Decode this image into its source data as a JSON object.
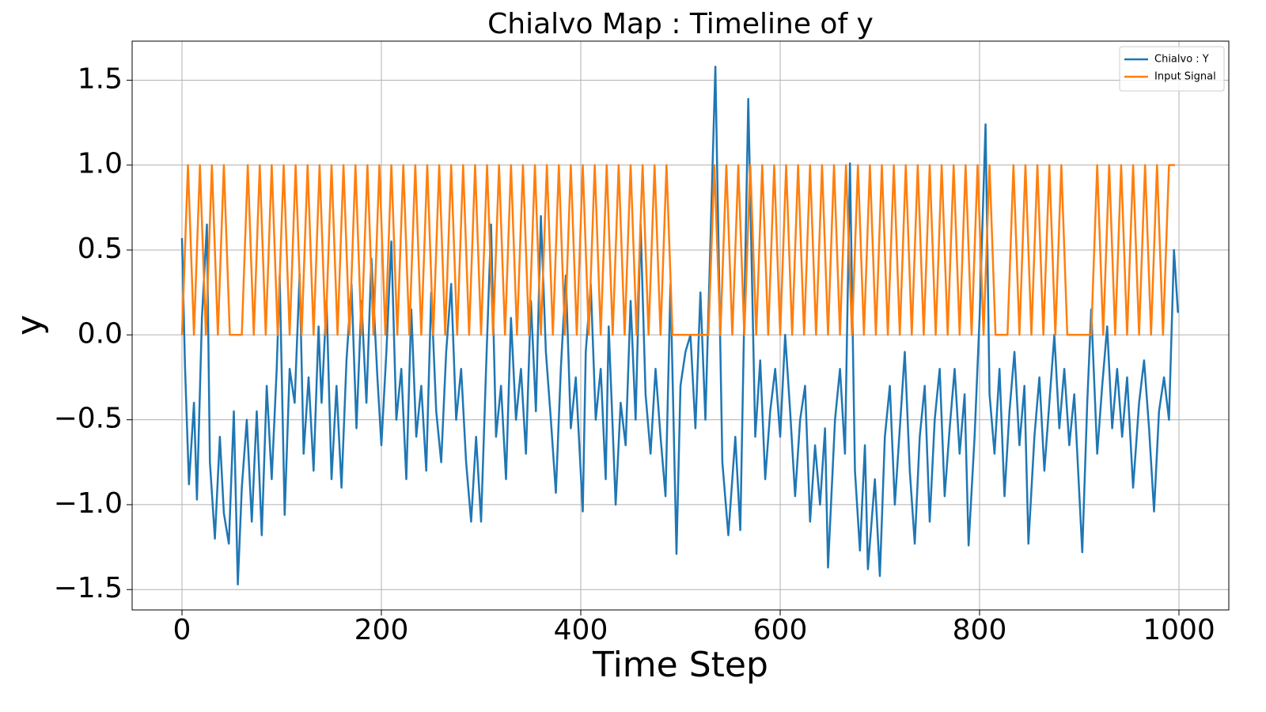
{
  "chart_data": {
    "type": "line",
    "title": "Chialvo Map : Timeline of y",
    "x_label": "Time Step",
    "y_label": "y",
    "xlim": [
      -50,
      1050
    ],
    "ylim": [
      -1.62,
      1.73
    ],
    "xticks": [
      0,
      200,
      400,
      600,
      800,
      1000
    ],
    "yticks": [
      {
        "value": -1.5,
        "label": "−1.5"
      },
      {
        "value": -1.0,
        "label": "−1.0"
      },
      {
        "value": -0.5,
        "label": "−0.5"
      },
      {
        "value": 0,
        "label": "0.0"
      },
      0.5,
      {
        "value": 1.0,
        "label": "1.0"
      },
      1.5
    ],
    "grid": true,
    "legend": "upper right",
    "series": [
      {
        "name": "Chialvo : Y",
        "color": "#1f77b4",
        "x": [
          0,
          3,
          7,
          12,
          15,
          20,
          25,
          28,
          33,
          38,
          42,
          47,
          52,
          56,
          60,
          65,
          70,
          75,
          80,
          85,
          90,
          95,
          98,
          103,
          108,
          113,
          118,
          122,
          127,
          132,
          137,
          140,
          145,
          150,
          155,
          160,
          165,
          170,
          175,
          180,
          185,
          190,
          196,
          200,
          205,
          210,
          215,
          220,
          225,
          230,
          235,
          240,
          245,
          250,
          255,
          260,
          265,
          270,
          275,
          280,
          285,
          290,
          295,
          300,
          305,
          310,
          315,
          320,
          325,
          330,
          335,
          340,
          345,
          350,
          355,
          360,
          365,
          370,
          375,
          380,
          385,
          390,
          395,
          402,
          405,
          410,
          415,
          420,
          425,
          428,
          435,
          440,
          445,
          450,
          455,
          460,
          465,
          470,
          475,
          480,
          485,
          490,
          496,
          500,
          505,
          510,
          515,
          520,
          525,
          535,
          542,
          548,
          555,
          560,
          568,
          575,
          580,
          585,
          590,
          595,
          600,
          605,
          610,
          615,
          620,
          625,
          630,
          635,
          640,
          645,
          648,
          655,
          660,
          665,
          670,
          675,
          680,
          685,
          688,
          695,
          700,
          705,
          710,
          715,
          720,
          725,
          730,
          735,
          740,
          745,
          750,
          755,
          760,
          765,
          770,
          775,
          780,
          785,
          789,
          795,
          800,
          806,
          810,
          815,
          820,
          825,
          830,
          835,
          840,
          845,
          849,
          855,
          860,
          865,
          870,
          875,
          880,
          885,
          890,
          895,
          903,
          908,
          912,
          918,
          923,
          928,
          933,
          938,
          943,
          948,
          954,
          960,
          965,
          970,
          975,
          980,
          985,
          990,
          995,
          999
        ],
        "values": [
          0.57,
          -0.18,
          -0.88,
          -0.4,
          -0.97,
          0.1,
          0.65,
          -0.75,
          -1.2,
          -0.6,
          -1.05,
          -1.23,
          -0.45,
          -1.47,
          -0.9,
          -0.5,
          -1.1,
          -0.45,
          -1.18,
          -0.3,
          -0.85,
          -0.2,
          0.35,
          -1.06,
          -0.2,
          -0.4,
          0.36,
          -0.7,
          -0.25,
          -0.8,
          0.05,
          -0.4,
          0.2,
          -0.85,
          -0.3,
          -0.9,
          -0.15,
          0.3,
          -0.55,
          0.2,
          -0.4,
          0.45,
          -0.25,
          -0.65,
          -0.1,
          0.55,
          -0.5,
          -0.2,
          -0.85,
          0.15,
          -0.6,
          -0.3,
          -0.8,
          0.25,
          -0.45,
          -0.75,
          -0.1,
          0.3,
          -0.5,
          -0.2,
          -0.75,
          -1.1,
          -0.6,
          -1.1,
          -0.2,
          0.65,
          -0.6,
          -0.3,
          -0.85,
          0.1,
          -0.5,
          -0.2,
          -0.7,
          0.2,
          -0.45,
          0.7,
          -0.1,
          -0.5,
          -0.93,
          -0.2,
          0.35,
          -0.55,
          -0.25,
          -1.04,
          -0.1,
          0.3,
          -0.5,
          -0.2,
          -0.85,
          0.05,
          -1.0,
          -0.4,
          -0.65,
          0.2,
          -0.5,
          0.65,
          -0.35,
          -0.7,
          -0.2,
          -0.6,
          -0.95,
          0.3,
          -1.29,
          -0.3,
          -0.1,
          0.0,
          -0.55,
          0.25,
          -0.5,
          1.58,
          -0.75,
          -1.18,
          -0.6,
          -1.15,
          1.39,
          -0.6,
          -0.15,
          -0.85,
          -0.45,
          -0.2,
          -0.6,
          0.0,
          -0.45,
          -0.95,
          -0.5,
          -0.3,
          -1.1,
          -0.65,
          -1.0,
          -0.55,
          -1.37,
          -0.5,
          -0.2,
          -0.7,
          1.01,
          -0.8,
          -1.27,
          -0.65,
          -1.38,
          -0.85,
          -1.42,
          -0.6,
          -0.3,
          -1.0,
          -0.55,
          -0.1,
          -0.8,
          -1.23,
          -0.6,
          -0.3,
          -1.1,
          -0.5,
          -0.2,
          -0.95,
          -0.55,
          -0.2,
          -0.7,
          -0.35,
          -1.24,
          -0.6,
          0.1,
          1.24,
          -0.35,
          -0.7,
          -0.2,
          -0.95,
          -0.45,
          -0.1,
          -0.65,
          -0.3,
          -1.23,
          -0.6,
          -0.25,
          -0.8,
          -0.4,
          0.0,
          -0.55,
          -0.2,
          -0.65,
          -0.35,
          -1.28,
          -0.4,
          0.15,
          -0.7,
          -0.3,
          0.05,
          -0.55,
          -0.2,
          -0.6,
          -0.25,
          -0.9,
          -0.4,
          -0.15,
          -0.55,
          -1.04,
          -0.45,
          -0.25,
          -0.5,
          0.5,
          0.13
        ]
      },
      {
        "name": "Input Signal",
        "color": "#ff7f0e",
        "x": [
          0,
          6,
          12,
          18,
          24,
          30,
          36,
          42,
          48,
          54,
          60,
          66,
          72,
          78,
          84,
          90,
          96,
          102,
          108,
          114,
          120,
          126,
          132,
          138,
          144,
          150,
          156,
          162,
          168,
          174,
          180,
          186,
          192,
          198,
          204,
          210,
          216,
          222,
          228,
          234,
          240,
          246,
          252,
          258,
          264,
          270,
          276,
          282,
          288,
          294,
          300,
          306,
          312,
          318,
          324,
          330,
          336,
          342,
          348,
          354,
          360,
          366,
          372,
          378,
          384,
          390,
          396,
          402,
          408,
          414,
          420,
          426,
          432,
          438,
          444,
          450,
          456,
          462,
          468,
          474,
          480,
          486,
          492,
          498,
          504,
          510,
          516,
          522,
          528,
          534,
          540,
          546,
          552,
          558,
          564,
          570,
          576,
          582,
          588,
          594,
          600,
          606,
          612,
          618,
          624,
          630,
          636,
          642,
          648,
          654,
          660,
          666,
          672,
          678,
          684,
          690,
          696,
          702,
          708,
          714,
          720,
          726,
          732,
          738,
          744,
          750,
          756,
          762,
          768,
          774,
          780,
          786,
          792,
          798,
          804,
          810,
          816,
          822,
          828,
          834,
          840,
          846,
          852,
          858,
          864,
          870,
          876,
          882,
          888,
          894,
          900,
          906,
          912,
          918,
          924,
          930,
          936,
          942,
          948,
          954,
          960,
          966,
          972,
          978,
          984,
          990,
          996
        ],
        "values": [
          0,
          1,
          0,
          1,
          0,
          1,
          0,
          1,
          0,
          0,
          0,
          1,
          0,
          1,
          0,
          1,
          0,
          1,
          0,
          1,
          0,
          1,
          0,
          1,
          0,
          1,
          0,
          1,
          0,
          1,
          0,
          1,
          0,
          1,
          0,
          1,
          0,
          1,
          0,
          1,
          0,
          1,
          0,
          1,
          0,
          1,
          0,
          1,
          0,
          1,
          0,
          1,
          0,
          1,
          0,
          1,
          0,
          1,
          0,
          1,
          0,
          1,
          0,
          1,
          0,
          1,
          0,
          1,
          0,
          1,
          0,
          1,
          0,
          1,
          0,
          1,
          0,
          1,
          0,
          1,
          0,
          1,
          0,
          0,
          0,
          0,
          0,
          0,
          0,
          1,
          0,
          1,
          0,
          1,
          0,
          1,
          0,
          1,
          0,
          1,
          0,
          1,
          0,
          1,
          0,
          1,
          0,
          1,
          0,
          1,
          0,
          1,
          0,
          1,
          0,
          1,
          0,
          1,
          0,
          1,
          0,
          1,
          0,
          1,
          0,
          1,
          0,
          1,
          0,
          1,
          0,
          1,
          0,
          1,
          0,
          1,
          0,
          0,
          0,
          1,
          0,
          1,
          0,
          1,
          0,
          1,
          0,
          1,
          0,
          0,
          0,
          0,
          0,
          1,
          0,
          1,
          0,
          1,
          0,
          1,
          0,
          1,
          0,
          1,
          0,
          1,
          1
        ]
      }
    ]
  }
}
